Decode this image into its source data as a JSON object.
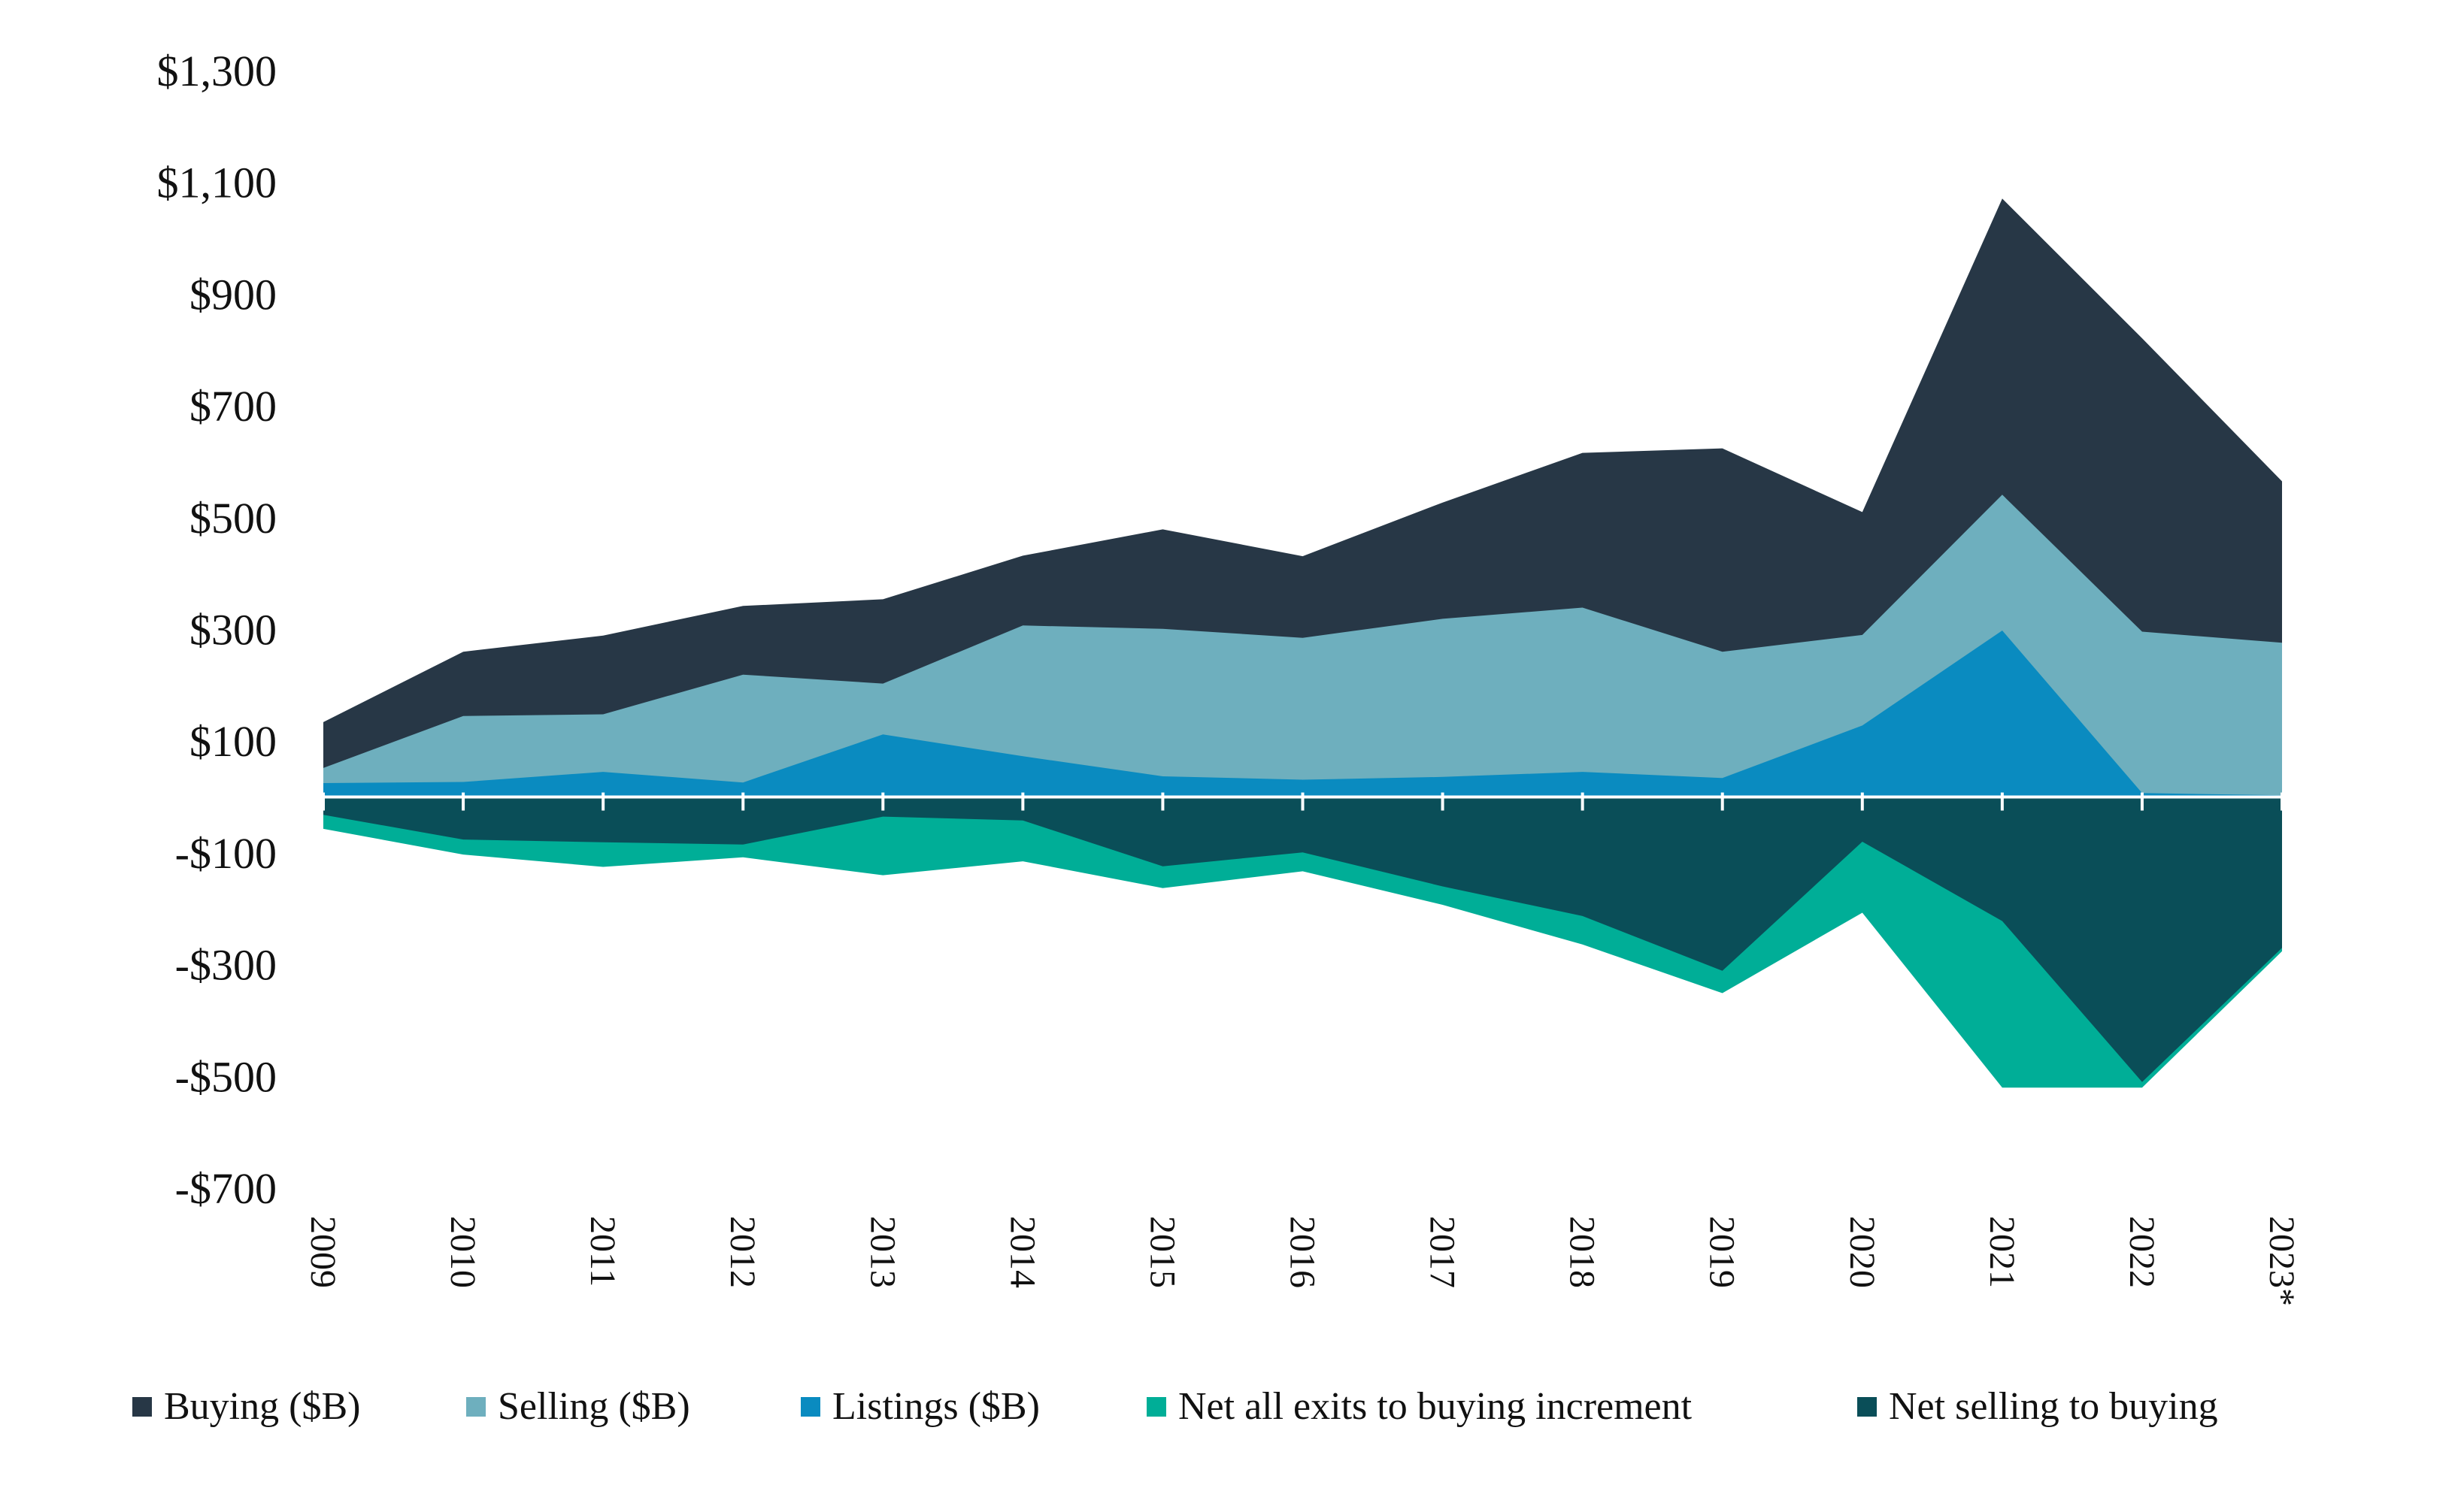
{
  "chart_data": {
    "type": "area",
    "categories": [
      "2009",
      "2010",
      "2011",
      "2012",
      "2013",
      "2014",
      "2015",
      "2016",
      "2017",
      "2018",
      "2019",
      "2020",
      "2021",
      "2022",
      "2023*"
    ],
    "y_ticks": [
      1300,
      1100,
      900,
      700,
      500,
      300,
      100,
      -100,
      -300,
      -500,
      -700
    ],
    "y_tick_labels": [
      "$1,300",
      "$1,100",
      "$900",
      "$700",
      "$500",
      "$300",
      "$100",
      "-$100",
      "-$300",
      "-$500",
      "-$700"
    ],
    "ylim": [
      -700,
      1300
    ],
    "title": "",
    "xlabel": "",
    "ylabel": "",
    "legend_position": "bottom",
    "series": [
      {
        "name": "Buying ($B)",
        "color": "#273746",
        "kind": "top",
        "values": [
          134,
          260,
          289,
          342,
          354,
          432,
          479,
          431,
          527,
          616,
          624,
          510,
          1071,
          821,
          565
        ]
      },
      {
        "name": "Selling ($B)",
        "color": "#6eafbe",
        "kind": "top",
        "values": [
          52,
          145,
          148,
          219,
          203,
          307,
          301,
          285,
          319,
          339,
          260,
          290,
          541,
          296,
          276
        ]
      },
      {
        "name": "Listings ($B)",
        "color": "#0a8bc0",
        "kind": "top",
        "values": [
          25,
          27,
          45,
          26,
          112,
          73,
          37,
          31,
          36,
          45,
          34,
          128,
          298,
          7,
          3
        ]
      },
      {
        "name": "Net all exits to buying increment",
        "color": "#00ae97",
        "kind": "bottom",
        "values": [
          -57,
          -103,
          -125,
          -108,
          -140,
          -115,
          -163,
          -133,
          -193,
          -264,
          -351,
          -207,
          -520,
          -520,
          -276
        ]
      },
      {
        "name": "Net selling to buying",
        "color": "#0a4e58",
        "kind": "bottom",
        "values": [
          -32,
          -76,
          -81,
          -85,
          -35,
          -42,
          -124,
          -99,
          -160,
          -213,
          -311,
          -80,
          -222,
          -510,
          -270
        ]
      }
    ]
  }
}
